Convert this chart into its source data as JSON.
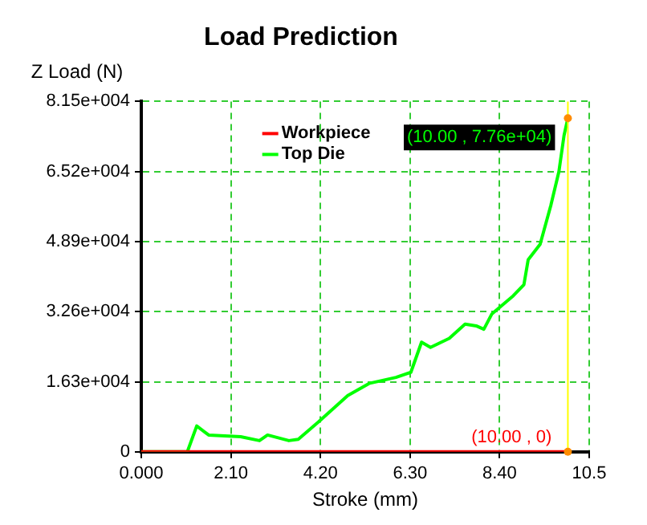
{
  "chart_data": {
    "type": "line",
    "title": "Load Prediction",
    "xlabel": "Stroke (mm)",
    "ylabel": "Z Load (N)",
    "xlim": [
      0,
      10.5
    ],
    "xticks": [
      {
        "value": 0,
        "label": "0.000"
      },
      {
        "value": 2.1,
        "label": "2.10"
      },
      {
        "value": 4.2,
        "label": "4.20"
      },
      {
        "value": 6.3,
        "label": "6.30"
      },
      {
        "value": 8.4,
        "label": "8.40"
      },
      {
        "value": 10.5,
        "label": "10.5"
      }
    ],
    "ylim": [
      0,
      81500
    ],
    "yticks": [
      {
        "value": 0,
        "label": "0"
      },
      {
        "value": 16300,
        "label": "1.63e+004"
      },
      {
        "value": 32600,
        "label": "3.26e+004"
      },
      {
        "value": 48900,
        "label": "4.89e+004"
      },
      {
        "value": 65200,
        "label": "6.52e+004"
      },
      {
        "value": 81500,
        "label": "8.15e+004"
      }
    ],
    "grid": true,
    "legend": "top",
    "line_style": "solid",
    "series": [
      {
        "name": "Workpiece",
        "color": "#ff0000",
        "x": [
          0,
          10
        ],
        "values": [
          0,
          0
        ]
      },
      {
        "name": "Top Die",
        "color": "#00ff00",
        "x": [
          0,
          1.08,
          1.3,
          1.58,
          2.33,
          2.77,
          2.96,
          3.46,
          3.68,
          4.15,
          4.84,
          5.34,
          5.97,
          6.32,
          6.57,
          6.78,
          7.22,
          7.59,
          7.85,
          8.03,
          8.22,
          8.72,
          8.97,
          9.07,
          9.35,
          9.6,
          9.79,
          9.91,
          10
        ],
        "values": [
          0,
          0,
          6000,
          3900,
          3500,
          2600,
          3900,
          2600,
          2900,
          6900,
          13100,
          15900,
          17300,
          18500,
          25500,
          24300,
          26400,
          29700,
          29300,
          28500,
          32100,
          36300,
          38900,
          44700,
          48300,
          57300,
          65200,
          73600,
          77600
        ]
      }
    ],
    "ref_lines": [
      {
        "axis": "x",
        "value": 10,
        "color": "#ffff00"
      }
    ],
    "annotations": [
      {
        "text": "(10.00 , 7.76e+04)",
        "x": 10,
        "y": 77600
      },
      {
        "text": "(10.00 , 0)",
        "x": 10,
        "y": 0
      }
    ]
  }
}
